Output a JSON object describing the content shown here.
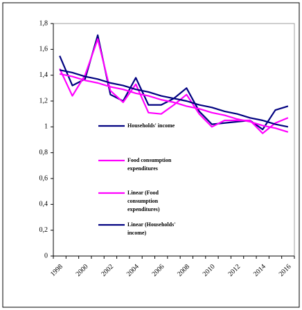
{
  "chart_data": {
    "type": "line",
    "categories": [
      "1998",
      null,
      "2000",
      null,
      "2002",
      null,
      "2004",
      null,
      "2006",
      null,
      "2008",
      null,
      "2010",
      null,
      "2012",
      null,
      "2014",
      null,
      "2016"
    ],
    "series": [
      {
        "name": "Households' income",
        "color": "#000080",
        "values": [
          1.55,
          1.32,
          1.37,
          1.71,
          1.25,
          1.2,
          1.38,
          1.17,
          1.17,
          1.22,
          1.3,
          1.12,
          1.02,
          1.03,
          1.04,
          1.05,
          0.98,
          1.13,
          1.16
        ]
      },
      {
        "name": "Food consumption expenditures",
        "color": "#ff00ff",
        "values": [
          1.45,
          1.24,
          1.4,
          1.68,
          1.28,
          1.19,
          1.33,
          1.11,
          1.1,
          1.17,
          1.25,
          1.1,
          1.0,
          1.05,
          1.05,
          1.05,
          0.95,
          1.03,
          1.07
        ]
      },
      {
        "name": "Linear (Food consumption expenditures)",
        "color": "#ff00ff",
        "values": [
          1.41,
          1.39,
          1.36,
          1.34,
          1.31,
          1.29,
          1.26,
          1.24,
          1.21,
          1.19,
          1.16,
          1.14,
          1.11,
          1.09,
          1.06,
          1.04,
          1.01,
          0.99,
          0.96
        ]
      },
      {
        "name": "Linear (Households' income)",
        "color": "#000080",
        "values": [
          1.44,
          1.42,
          1.39,
          1.37,
          1.34,
          1.32,
          1.29,
          1.27,
          1.24,
          1.22,
          1.2,
          1.17,
          1.15,
          1.12,
          1.1,
          1.07,
          1.05,
          1.02,
          1.0
        ]
      }
    ],
    "ylim": [
      0,
      1.8
    ],
    "yticks": [
      0,
      {
        "value": 0.2,
        "label": "0,2"
      },
      {
        "value": 0.4,
        "label": "0,4"
      },
      {
        "value": 0.6,
        "label": "0,6"
      },
      {
        "value": 0.8,
        "label": "0,8"
      },
      1,
      {
        "value": 1.2,
        "label": "1,2"
      },
      {
        "value": 1.4,
        "label": "1,4"
      },
      {
        "value": 1.6,
        "label": "1,6"
      },
      {
        "value": 1.8,
        "label": "1,8"
      }
    ],
    "grid": false
  }
}
